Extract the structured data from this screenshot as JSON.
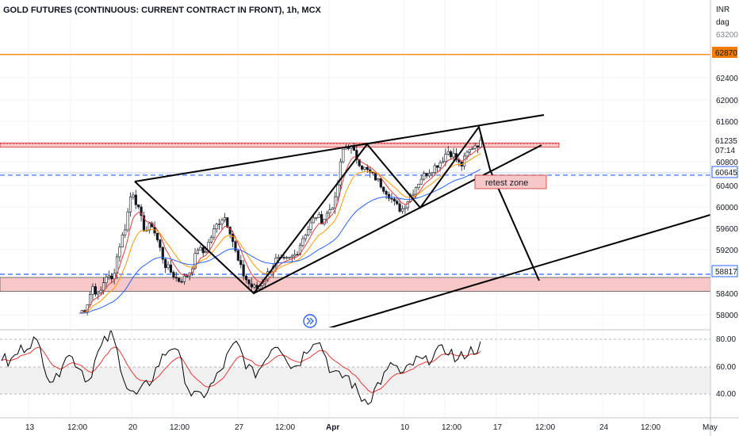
{
  "header": {
    "title": "GOLD FUTURES (CONTINUOUS: CURRENT CONTRACT IN FRONT), 1h, MCX"
  },
  "price_axis": {
    "currency": "INR",
    "unit": "dag",
    "ticks": [
      "63200",
      "62400",
      "62000",
      "61600",
      "60800",
      "60400",
      "60000",
      "59600",
      "59200",
      "58400",
      "58000"
    ]
  },
  "price_tags": {
    "orange_level": "62870",
    "last_price": "61235",
    "countdown": "07:14",
    "blue_level": "60645",
    "support_level": "58817"
  },
  "rsi_axis": {
    "ticks": [
      "80.00",
      "60.00",
      "40.00"
    ]
  },
  "time_axis": {
    "ticks": [
      "13",
      "12:00",
      "20",
      "12:00",
      "27",
      "12:00",
      "Apr",
      "10",
      "12:00",
      "17",
      "12:00",
      "24",
      "12:00",
      "May"
    ]
  },
  "annotations": {
    "retest_label": "retest zone"
  },
  "colors": {
    "orange_line": "#f57c00",
    "resistance_zone": "#f8c7c7",
    "support_zone": "#f8c7c7",
    "dashed_blue": "#2962ff",
    "ema_blue": "#2962ff",
    "ema_orange": "#ff9800",
    "ema_red": "#e53935",
    "rsi_line": "#000000",
    "rsi_signal": "#e53935",
    "rsi_band": "#f0f0f0"
  },
  "chart_data": [
    {
      "type": "candlestick",
      "title": "GOLD FUTURES (CONTINUOUS: CURRENT CONTRACT IN FRONT), 1h, MCX",
      "ylim": [
        57800,
        63300
      ],
      "horizontal_levels": [
        62870,
        60645,
        58817
      ],
      "zones": [
        {
          "from": 61160,
          "to": 61240,
          "kind": "resistance"
        },
        {
          "from": 58560,
          "to": 58830,
          "kind": "support"
        }
      ],
      "price_path": [
        58100,
        58200,
        58600,
        58400,
        58800,
        58700,
        59300,
        59700,
        60400,
        60000,
        59600,
        59750,
        59400,
        59000,
        58850,
        58700,
        58750,
        58900,
        59300,
        59200,
        59500,
        59750,
        59900,
        59600,
        59100,
        58800,
        58600,
        58550,
        58700,
        58900,
        59100,
        59050,
        59100,
        59200,
        59500,
        59700,
        59900,
        59800,
        60000,
        60200,
        61100,
        61200,
        61000,
        60800,
        60700,
        60600,
        60450,
        60300,
        60100,
        60000,
        60200,
        60400,
        60600,
        60700,
        60800,
        60900,
        61100,
        61000,
        60800,
        61050,
        61200,
        61235
      ]
    },
    {
      "type": "line",
      "title": "",
      "ylim": [
        30,
        90
      ],
      "reference_lines": [
        80,
        60,
        40
      ],
      "values": [
        67,
        62,
        70,
        75,
        80,
        72,
        52,
        50,
        70,
        66,
        60,
        49,
        66,
        77,
        84,
        65,
        45,
        38,
        43,
        50,
        62,
        71,
        77,
        59,
        41,
        37,
        41,
        48,
        58,
        70,
        77,
        64,
        54,
        59,
        71,
        78,
        71,
        59,
        64,
        74,
        82,
        72,
        56,
        52,
        54,
        44,
        36,
        37,
        48,
        55,
        63,
        52,
        60,
        65,
        63,
        70,
        71,
        73,
        63,
        70,
        72,
        75
      ]
    }
  ]
}
